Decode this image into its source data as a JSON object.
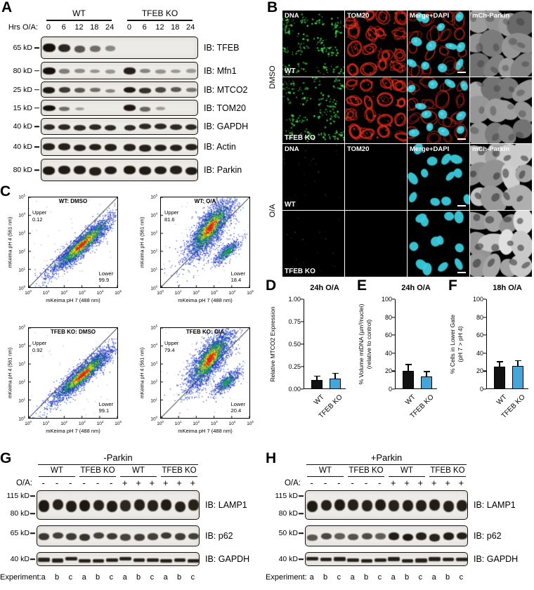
{
  "panel_a": {
    "label": "A",
    "groups": [
      "WT",
      "TFEB KO"
    ],
    "hrs_label": "Hrs O/A:",
    "timepoints": [
      "0",
      "6",
      "12",
      "18",
      "24"
    ],
    "blots": [
      {
        "mw": "65 kD",
        "ib": "IB: TFEB",
        "bands": [
          1,
          0.85,
          0.55,
          0.4,
          0.22,
          0,
          0,
          0,
          0,
          0
        ]
      },
      {
        "mw": "80 kD",
        "ib": "IB: Mfn1",
        "bands": [
          1,
          0.3,
          0.2,
          0.15,
          0.12,
          0.9,
          0.25,
          0.15,
          0.12,
          0.1
        ]
      },
      {
        "mw": "25 kD",
        "ib": "IB: MTCO2",
        "bands": [
          0.95,
          0.75,
          0.55,
          0.4,
          0.25,
          0.95,
          0.8,
          0.65,
          0.55,
          0.35
        ]
      },
      {
        "mw": "15 kD",
        "ib": "IB: TOM20",
        "bands": [
          1,
          0.4,
          0.08,
          0,
          0,
          0.95,
          0.45,
          0.08,
          0,
          0
        ]
      },
      {
        "mw": "40 kD",
        "ib": "IB: GAPDH",
        "bands": [
          0.85,
          0.85,
          0.85,
          0.85,
          0.85,
          0.85,
          0.85,
          0.85,
          0.85,
          0.85
        ]
      },
      {
        "mw": "40 kD",
        "ib": "IB: Actin",
        "bands": [
          0.9,
          0.9,
          0.9,
          0.9,
          0.9,
          0.9,
          0.9,
          0.9,
          0.9,
          0.9
        ]
      },
      {
        "mw": "80 kD",
        "ib": "IB: Parkin",
        "bands": [
          0.95,
          0.92,
          0.92,
          0.9,
          0.92,
          0.95,
          0.92,
          0.92,
          0.9,
          0.92
        ]
      }
    ]
  },
  "panel_b": {
    "label": "B",
    "col_headers": [
      "DNA",
      "TOM20",
      "Merge+DAPI",
      "mCh-Parkin"
    ],
    "side_labels": [
      "DMSO",
      "O/A"
    ],
    "rows": [
      {
        "label": "WT",
        "headers": true,
        "cells": [
          "dna",
          "tom20",
          "merge",
          "parkin_dim"
        ]
      },
      {
        "label": "TFEB KO",
        "headers": false,
        "cells": [
          "dna",
          "tom20",
          "merge",
          "parkin_dim"
        ]
      },
      {
        "label": "WT",
        "headers": true,
        "cells": [
          "dna_oa",
          "blank",
          "merge_oa",
          "parkin_bright"
        ]
      },
      {
        "label": "TFEB KO",
        "headers": false,
        "cells": [
          "dna_oa",
          "blank",
          "merge_oa",
          "parkin_bright"
        ]
      }
    ]
  },
  "panel_c": {
    "label": "C",
    "upper_label": "Upper",
    "lower_label": "Lower",
    "xlabel": "mKeima pH 7 (488 nm)",
    "ylabel": "mKeima pH 4 (561 nm)",
    "tick_exponents": [
      "0",
      "1",
      "2",
      "3",
      "4",
      "5"
    ],
    "plots": [
      {
        "title": "WT: DMSO",
        "upper": "0.12",
        "lower": "99.9",
        "pattern": "basal"
      },
      {
        "title": "WT: O/A",
        "upper": "81.6",
        "lower": "18.4",
        "pattern": "shifted"
      },
      {
        "title": "TFEB KO: DMSO",
        "upper": "0.92",
        "lower": "99.1",
        "pattern": "basal"
      },
      {
        "title": "TFEB KO: O/A",
        "upper": "79.4",
        "lower": "20.4",
        "pattern": "shifted"
      }
    ]
  },
  "chart_data": [
    {
      "panel": "D",
      "type": "bar",
      "title": "24h O/A",
      "ylabel_lines": [
        "Relative MTCO2 Expression"
      ],
      "categories": [
        "WT",
        "TFEB KO"
      ],
      "values": [
        0.1,
        0.12
      ],
      "errors": [
        0.05,
        0.06
      ],
      "bar_colors": [
        "#111111",
        "#45a5d8"
      ],
      "ylim": [
        0,
        1.0
      ],
      "yticks": [
        "0.00",
        "0.25",
        "0.50",
        "0.75",
        "1.00"
      ]
    },
    {
      "panel": "E",
      "type": "bar",
      "title": "24h O/A",
      "ylabel_lines": [
        "% Volume mtDNA (µm³/nuclei)",
        "(relative to control)"
      ],
      "categories": [
        "WT",
        "TFEB KO"
      ],
      "values": [
        20,
        14
      ],
      "errors": [
        8,
        6
      ],
      "bar_colors": [
        "#111111",
        "#45a5d8"
      ],
      "ylim": [
        0,
        100
      ],
      "yticks": [
        "0",
        "20",
        "40",
        "60",
        "80",
        "100"
      ]
    },
    {
      "panel": "F",
      "type": "bar",
      "title": "18h O/A",
      "ylabel_lines": [
        "% Cells in Lower Gate",
        "(pH 7 > pH 4)"
      ],
      "categories": [
        "WT",
        "TFEB KO"
      ],
      "values": [
        25,
        26
      ],
      "errors": [
        6,
        6
      ],
      "bar_colors": [
        "#111111",
        "#45a5d8"
      ],
      "ylim": [
        0,
        100
      ],
      "yticks": [
        "0",
        "20",
        "40",
        "60",
        "80",
        "100"
      ]
    }
  ],
  "panel_g": {
    "label": "G",
    "title": "-Parkin",
    "groups": [
      "WT",
      "TFEB KO",
      "WT",
      "TFEB KO"
    ],
    "oa_label": "O/A:",
    "oa_signs": [
      "-",
      "-",
      "-",
      "-",
      "-",
      "-",
      "+",
      "+",
      "+",
      "+",
      "+",
      "+"
    ],
    "blots": [
      {
        "mws": [
          "115 kD",
          "80 kD"
        ],
        "ib": "IB: LAMP1",
        "bands": [
          0.95,
          0.9,
          0.92,
          0.95,
          0.88,
          0.92,
          0.85,
          0.9,
          0.88,
          0.92,
          0.9,
          0.88
        ]
      },
      {
        "mws": [
          "65 kD"
        ],
        "ib": "IB: p62",
        "bands": [
          0.75,
          0.7,
          0.72,
          0.78,
          0.7,
          0.74,
          0.68,
          0.72,
          0.7,
          0.75,
          0.72,
          0.7
        ]
      },
      {
        "mws": [
          "40 kD"
        ],
        "ib": "IB: GAPDH",
        "bands": [
          0.9,
          0.9,
          0.9,
          0.9,
          0.9,
          0.9,
          0.9,
          0.9,
          0.9,
          0.9,
          0.9,
          0.9
        ]
      }
    ],
    "experiment_label": "Experiment:",
    "experiments": [
      "a",
      "b",
      "c",
      "a",
      "b",
      "c",
      "a",
      "b",
      "c",
      "a",
      "b",
      "c"
    ]
  },
  "panel_h": {
    "label": "H",
    "title": "+Parkin",
    "groups": [
      "WT",
      "TFEB KO",
      "WT",
      "TFEB KO"
    ],
    "oa_label": "O/A:",
    "oa_signs": [
      "-",
      "-",
      "-",
      "-",
      "-",
      "-",
      "+",
      "+",
      "+",
      "+",
      "+",
      "+"
    ],
    "blots": [
      {
        "mws": [
          "115 kD",
          "80 kD"
        ],
        "ib": "IB: LAMP1",
        "bands": [
          0.92,
          0.9,
          0.93,
          0.9,
          0.88,
          0.92,
          0.88,
          0.9,
          0.9,
          0.92,
          0.9,
          0.9
        ]
      },
      {
        "mws": [
          "50 kD"
        ],
        "ib": "IB: p62",
        "bands": [
          0.55,
          0.65,
          0.5,
          0.58,
          0.62,
          0.5,
          0.92,
          0.95,
          0.9,
          0.88,
          0.92,
          0.9
        ]
      },
      {
        "mws": [
          "40 kD"
        ],
        "ib": "IB: GAPDH",
        "bands": [
          0.9,
          0.9,
          0.9,
          0.9,
          0.9,
          0.9,
          0.9,
          0.9,
          0.9,
          0.9,
          0.9,
          0.9
        ]
      }
    ],
    "experiment_label": "Experiment:",
    "experiments": [
      "a",
      "b",
      "c",
      "a",
      "b",
      "c",
      "a",
      "b",
      "c",
      "a",
      "b",
      "c"
    ]
  }
}
